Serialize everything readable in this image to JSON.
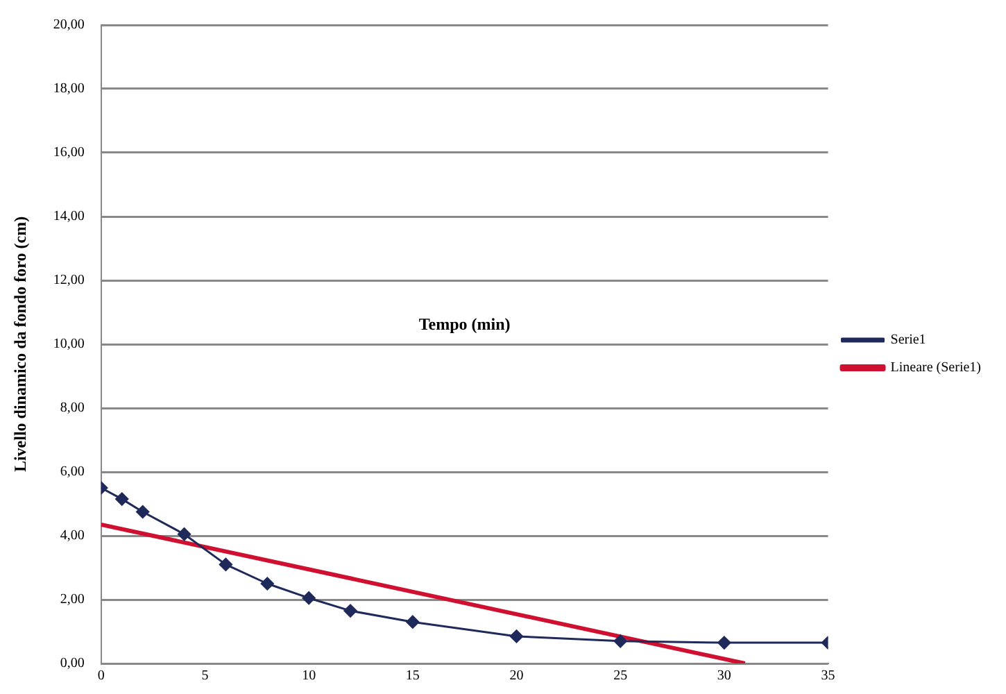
{
  "chart_data": {
    "type": "line",
    "xlabel": "Tempo (min)",
    "ylabel": "Livello dinamico da fondo foro (cm)",
    "series": [
      {
        "name": "Serie1",
        "color": "#1f2a5a",
        "marker": "diamond",
        "x": [
          0,
          1,
          2,
          4,
          6,
          8,
          10,
          12,
          15,
          20,
          25,
          30,
          35
        ],
        "values": [
          5.5,
          5.15,
          4.75,
          4.05,
          3.1,
          2.5,
          2.05,
          1.65,
          1.3,
          0.85,
          0.7,
          0.65,
          0.65
        ]
      },
      {
        "name": "Lineare (Serie1)",
        "color": "#d01030",
        "marker": "none",
        "x": [
          0,
          31
        ],
        "values": [
          4.35,
          0
        ]
      }
    ],
    "xlim": [
      0,
      35
    ],
    "xticks": [
      0,
      5,
      10,
      15,
      20,
      25,
      30,
      35
    ],
    "ylim": [
      0,
      20
    ],
    "yticks": [
      {
        "value": 0,
        "label": "0,00"
      },
      {
        "value": 2,
        "label": "2,00"
      },
      {
        "value": 4,
        "label": "4,00"
      },
      {
        "value": 6,
        "label": "6,00"
      },
      {
        "value": 8,
        "label": "8,00"
      },
      {
        "value": 10,
        "label": "10,00"
      },
      {
        "value": 12,
        "label": "12,00"
      },
      {
        "value": 14,
        "label": "14,00"
      },
      {
        "value": 16,
        "label": "16,00"
      },
      {
        "value": 18,
        "label": "18,00"
      },
      {
        "value": 20,
        "label": "20,00"
      }
    ],
    "grid": "y",
    "legend": "right"
  }
}
